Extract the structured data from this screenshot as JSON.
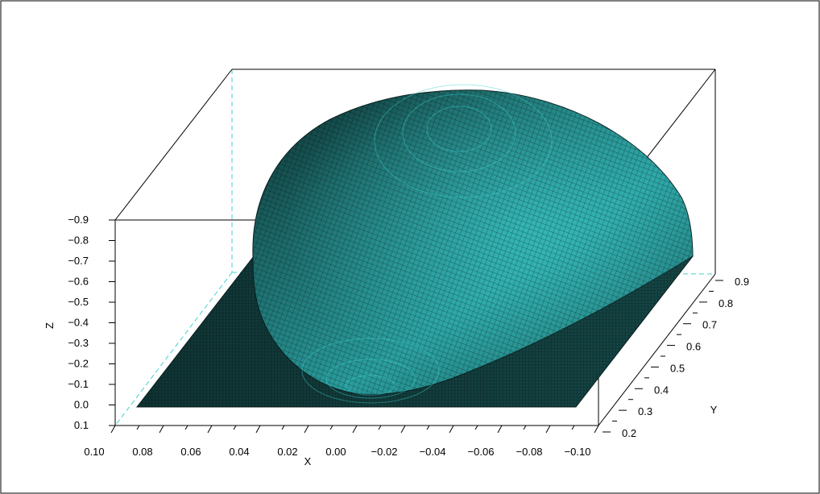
{
  "chart_data": {
    "type": "surface3d",
    "title": "",
    "xlabel": "X",
    "ylabel": "Y",
    "zlabel": "Z",
    "x_ticks": [
      "0.10",
      "0.08",
      "0.06",
      "0.04",
      "0.02",
      "0.00",
      "−0.02",
      "−0.04",
      "−0.06",
      "−0.08",
      "−0.10"
    ],
    "y_ticks": [
      "0.2",
      "0.3",
      "0.4",
      "0.5",
      "0.6",
      "0.7",
      "0.8",
      "0.9"
    ],
    "z_ticks": [
      "0.1",
      "0.0",
      "−0.1",
      "−0.2",
      "−0.3",
      "−0.4",
      "−0.5",
      "−0.6",
      "−0.7",
      "−0.8",
      "−0.9"
    ],
    "xlim": [
      0.1,
      -0.1
    ],
    "ylim": [
      0.2,
      0.9
    ],
    "zlim": [
      0.1,
      -0.9
    ],
    "surface_min_z": -0.9,
    "base_z": 0.0,
    "surface_color": "#3fd0d0",
    "mesh_color": "#000000",
    "hidden_axis_color": "#40d0d0",
    "grid": false
  }
}
